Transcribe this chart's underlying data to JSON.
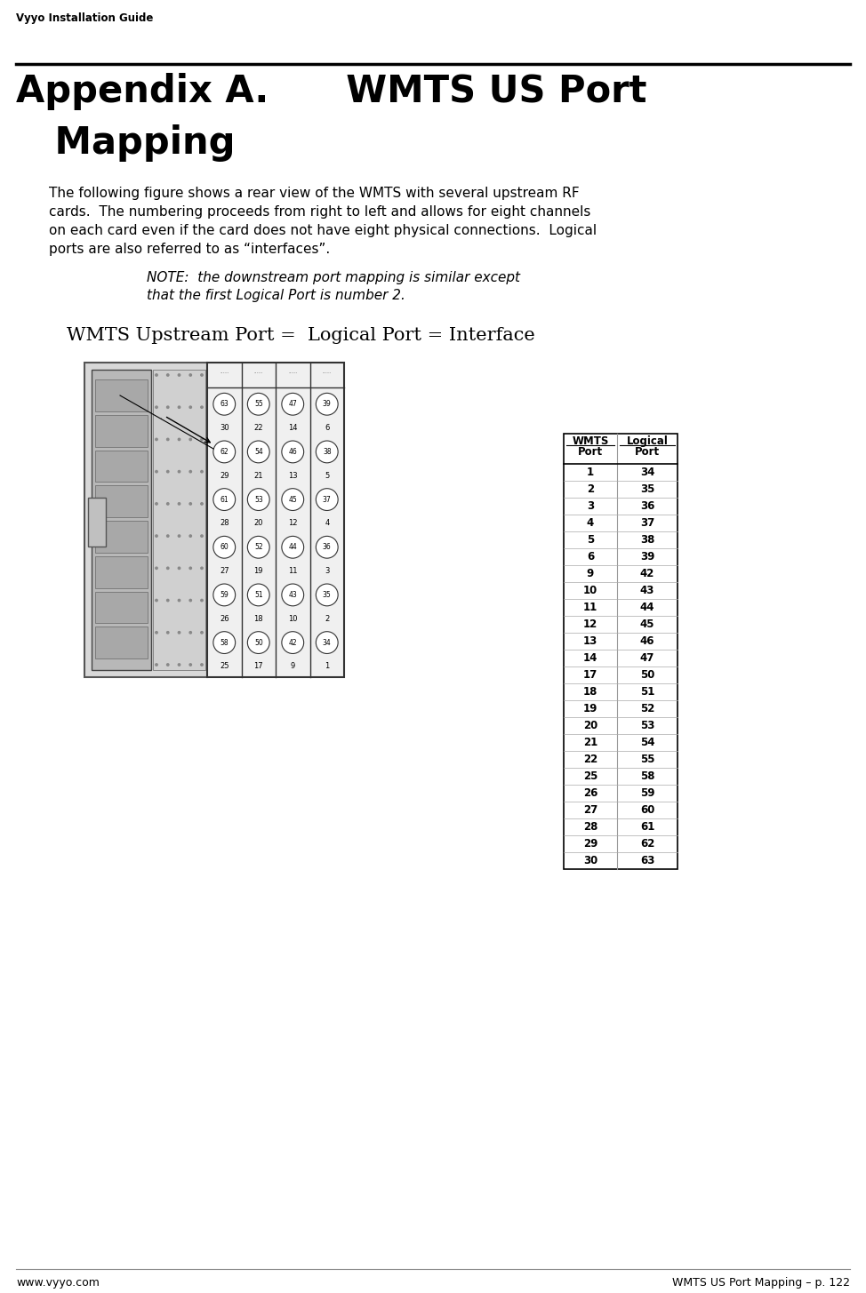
{
  "header_top": "Vyyo Installation Guide",
  "footer_left": "www.vyyo.com",
  "footer_right": "WMTS US Port Mapping – p. 122",
  "title_line1": "Appendix A.      WMTS US Port",
  "title_line2": "   Mapping",
  "body_lines": [
    "The following figure shows a rear view of the WMTS with several upstream RF",
    "cards.  The numbering proceeds from right to left and allows for eight channels",
    "on each card even if the card does not have eight physical connections.  Logical",
    "ports are also referred to as “interfaces”."
  ],
  "note_lines": [
    "NOTE:  the downstream port mapping is similar except",
    "that the first Logical Port is number 2."
  ],
  "diagram_label": "WMTS Upstream Port =  Logical Port = Interface",
  "table_data": [
    [
      1,
      34
    ],
    [
      2,
      35
    ],
    [
      3,
      36
    ],
    [
      4,
      37
    ],
    [
      5,
      38
    ],
    [
      6,
      39
    ],
    [
      9,
      42
    ],
    [
      10,
      43
    ],
    [
      11,
      44
    ],
    [
      12,
      45
    ],
    [
      13,
      46
    ],
    [
      14,
      47
    ],
    [
      17,
      50
    ],
    [
      18,
      51
    ],
    [
      19,
      52
    ],
    [
      20,
      53
    ],
    [
      21,
      54
    ],
    [
      22,
      55
    ],
    [
      25,
      58
    ],
    [
      26,
      59
    ],
    [
      27,
      60
    ],
    [
      28,
      61
    ],
    [
      29,
      62
    ],
    [
      30,
      63
    ]
  ],
  "bg_color": "#ffffff",
  "text_color": "#000000"
}
